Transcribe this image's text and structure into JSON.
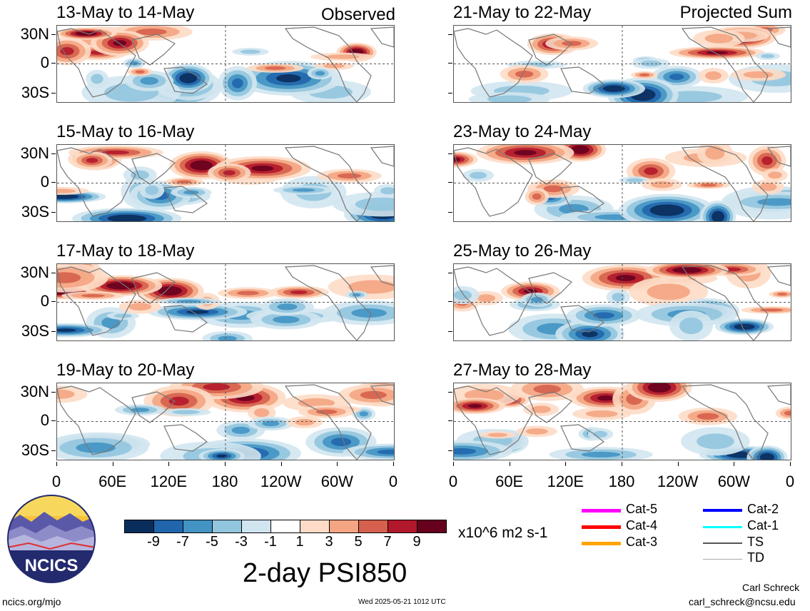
{
  "panels": [
    {
      "title": "13-May to 14-May",
      "tag": "Observed"
    },
    {
      "title": "15-May to 16-May",
      "tag": ""
    },
    {
      "title": "17-May to 18-May",
      "tag": ""
    },
    {
      "title": "19-May to 20-May",
      "tag": ""
    },
    {
      "title": "21-May to 22-May",
      "tag": "Projected Sum"
    },
    {
      "title": "23-May to 24-May",
      "tag": ""
    },
    {
      "title": "25-May to 26-May",
      "tag": ""
    },
    {
      "title": "27-May to 28-May",
      "tag": ""
    }
  ],
  "y_labels": [
    "30N",
    "0",
    "30S"
  ],
  "x_labels": [
    "0",
    "60E",
    "120E",
    "180",
    "120W",
    "60W",
    "0"
  ],
  "colorbar": {
    "colors": [
      "#0a2e5c",
      "#2166ac",
      "#4393c3",
      "#92c5de",
      "#d1e5f0",
      "#ffffff",
      "#fddbc7",
      "#f4a582",
      "#d6604d",
      "#b2182b",
      "#67001f"
    ],
    "labels": [
      "-9",
      "-7",
      "-5",
      "-3",
      "-1",
      "1",
      "3",
      "5",
      "7",
      "9"
    ],
    "units": "x10^6 m2 s-1"
  },
  "legend": [
    {
      "label": "Cat-5",
      "color": "#ff00ff",
      "width": 5
    },
    {
      "label": "Cat-4",
      "color": "#ff0000",
      "width": 5
    },
    {
      "label": "Cat-3",
      "color": "#ffa500",
      "width": 5
    },
    {
      "label": "Cat-2",
      "color": "#0000ff",
      "width": 4
    },
    {
      "label": "Cat-1",
      "color": "#00ffff",
      "width": 3
    },
    {
      "label": "TS",
      "color": "#555555",
      "width": 2
    },
    {
      "label": "TD",
      "color": "#aaaaaa",
      "width": 1
    }
  ],
  "logo_text": "NCICS",
  "main_title": "2-day PSI850",
  "footer": {
    "url": "ncics.org/mjo",
    "timestamp": "Wed 2025-05-21 1012 UTC",
    "author": "Carl Schreck",
    "email": "carl_schreck@ncsu.edu"
  }
}
